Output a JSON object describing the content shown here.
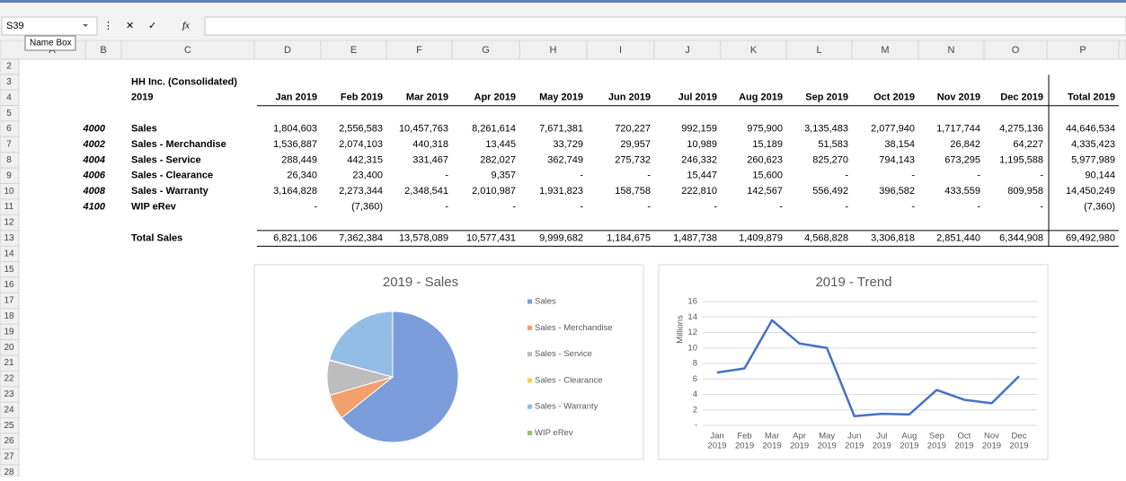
{
  "toolbar": {
    "name_box": "S39",
    "tooltip": "Name Box",
    "fx": "fx"
  },
  "sheet": {
    "columns": [
      "A",
      "B",
      "C",
      "D",
      "E",
      "F",
      "G",
      "H",
      "I",
      "J",
      "K",
      "L",
      "M",
      "N",
      "O",
      "P"
    ],
    "rows": [
      2,
      3,
      4,
      5,
      6,
      7,
      8,
      9,
      10,
      11,
      12,
      13,
      14,
      15,
      16,
      17,
      18,
      19,
      20,
      21,
      22,
      23,
      24,
      25,
      26,
      27,
      28
    ]
  },
  "table": {
    "title": "HH Inc. (Consolidated)",
    "year": "2019",
    "headers": [
      "Jan 2019",
      "Feb 2019",
      "Mar 2019",
      "Apr 2019",
      "May 2019",
      "Jun 2019",
      "Jul 2019",
      "Aug 2019",
      "Sep 2019",
      "Oct 2019",
      "Nov 2019",
      "Dec 2019",
      "Total 2019"
    ],
    "rows": [
      {
        "code": "4000",
        "name": "Sales",
        "cells": [
          "1,804,603",
          "2,556,583",
          "10,457,763",
          "8,261,614",
          "7,671,381",
          "720,227",
          "992,159",
          "975,900",
          "3,135,483",
          "2,077,940",
          "1,717,744",
          "4,275,136",
          "44,646,534"
        ]
      },
      {
        "code": "4002",
        "name": "Sales - Merchandise",
        "cells": [
          "1,536,887",
          "2,074,103",
          "440,318",
          "13,445",
          "33,729",
          "29,957",
          "10,989",
          "15,189",
          "51,583",
          "38,154",
          "26,842",
          "64,227",
          "4,335,423"
        ]
      },
      {
        "code": "4004",
        "name": "Sales - Service",
        "cells": [
          "288,449",
          "442,315",
          "331,467",
          "282,027",
          "362,749",
          "275,732",
          "246,332",
          "260,623",
          "825,270",
          "794,143",
          "673,295",
          "1,195,588",
          "5,977,989"
        ]
      },
      {
        "code": "4006",
        "name": "Sales - Clearance",
        "cells": [
          "26,340",
          "23,400",
          "-",
          "9,357",
          "-",
          "-",
          "15,447",
          "15,600",
          "-",
          "-",
          "-",
          "-",
          "90,144"
        ]
      },
      {
        "code": "4008",
        "name": "Sales - Warranty",
        "cells": [
          "3,164,828",
          "2,273,344",
          "2,348,541",
          "2,010,987",
          "1,931,823",
          "158,758",
          "222,810",
          "142,567",
          "556,492",
          "396,582",
          "433,559",
          "809,958",
          "14,450,249"
        ]
      },
      {
        "code": "4100",
        "name": "WIP eRev",
        "cells": [
          "-",
          "(7,360)",
          "-",
          "-",
          "-",
          "-",
          "-",
          "-",
          "-",
          "-",
          "-",
          "-",
          "(7,360)"
        ]
      }
    ],
    "total": {
      "name": "Total Sales",
      "cells": [
        "6,821,106",
        "7,362,384",
        "13,578,089",
        "10,577,431",
        "9,999,682",
        "1,184,675",
        "1,487,738",
        "1,409,879",
        "4,568,828",
        "3,306,818",
        "2,851,440",
        "6,344,908",
        "69,492,980"
      ]
    }
  },
  "chart_data": [
    {
      "type": "pie",
      "title": "2019 - Sales",
      "categories": [
        "Sales",
        "Sales - Merchandise",
        "Sales - Service",
        "Sales - Clearance",
        "Sales - Warranty",
        "WIP eRev"
      ],
      "values": [
        44646534,
        4335423,
        5977989,
        90144,
        14450249,
        -7360
      ],
      "colors": [
        "#7b9ddc",
        "#f1a06e",
        "#bdbdbd",
        "#ffcb3d",
        "#94bde6",
        "#8cc46a"
      ],
      "legend": "right"
    },
    {
      "type": "line",
      "title": "2019 - Trend",
      "y_label": "Millions",
      "categories": [
        [
          "Jan",
          "2019"
        ],
        [
          "Feb",
          "2019"
        ],
        [
          "Mar",
          "2019"
        ],
        [
          "Apr",
          "2019"
        ],
        [
          "May",
          "2019"
        ],
        [
          "Jun",
          "2019"
        ],
        [
          "Jul",
          "2019"
        ],
        [
          "Aug",
          "2019"
        ],
        [
          "Sep",
          "2019"
        ],
        [
          "Oct",
          "2019"
        ],
        [
          "Nov",
          "2019"
        ],
        [
          "Dec",
          "2019"
        ]
      ],
      "series": [
        {
          "color": "#4472c4",
          "values": [
            6.821106,
            7.362384,
            13.578089,
            10.577431,
            9.999682,
            1.184675,
            1.487738,
            1.409879,
            4.568828,
            3.306818,
            2.85144,
            6.344908
          ]
        }
      ],
      "ylim": [
        0,
        16
      ],
      "yticks": [
        {
          "value": 0,
          "label": "-"
        },
        2,
        4,
        6,
        8,
        10,
        12,
        14,
        16
      ],
      "grid": true
    }
  ]
}
